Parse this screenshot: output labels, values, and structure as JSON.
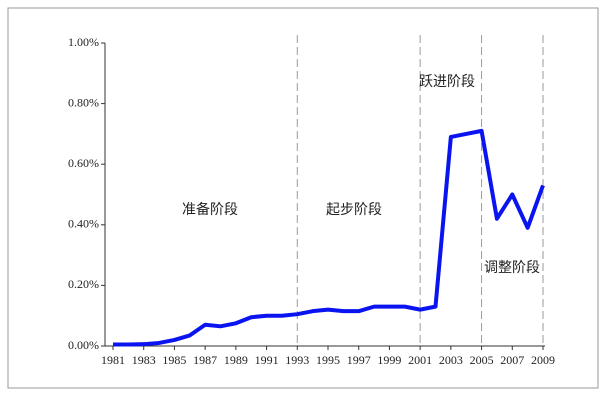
{
  "chart_data": {
    "type": "line",
    "x": [
      1981,
      1982,
      1983,
      1984,
      1985,
      1986,
      1987,
      1988,
      1989,
      1990,
      1991,
      1992,
      1993,
      1994,
      1995,
      1996,
      1997,
      1998,
      1999,
      2000,
      2001,
      2002,
      2003,
      2004,
      2005,
      2006,
      2007,
      2008,
      2009
    ],
    "series": [
      {
        "color": "#0a14f0",
        "values": [
          0.005,
          0.005,
          0.006,
          0.01,
          0.02,
          0.035,
          0.07,
          0.065,
          0.075,
          0.095,
          0.1,
          0.1,
          0.105,
          0.115,
          0.12,
          0.115,
          0.115,
          0.13,
          0.13,
          0.13,
          0.12,
          0.13,
          0.69,
          0.7,
          0.71,
          0.42,
          0.5,
          0.39,
          0.53
        ]
      }
    ],
    "xlim": [
      1981,
      2009
    ],
    "xticks": [
      1981,
      1983,
      1985,
      1987,
      1989,
      1991,
      1993,
      1995,
      1997,
      1999,
      2001,
      2003,
      2005,
      2007,
      2009
    ],
    "ylim": [
      0,
      1
    ],
    "yticks": [
      {
        "value": 0,
        "label": "0.00%"
      },
      {
        "value": 0.2,
        "label": "0.20%"
      },
      {
        "value": 0.4,
        "label": "0.40%"
      },
      {
        "value": 0.6,
        "label": "0.60%"
      },
      {
        "value": 0.8,
        "label": "0.80%"
      },
      {
        "value": 1,
        "label": "1.00%"
      }
    ],
    "vlines": [
      1993,
      2001,
      2005,
      2009
    ],
    "annotations": [
      "准备阶段",
      "起步阶段",
      "跃进阶段",
      "调整阶段"
    ]
  }
}
